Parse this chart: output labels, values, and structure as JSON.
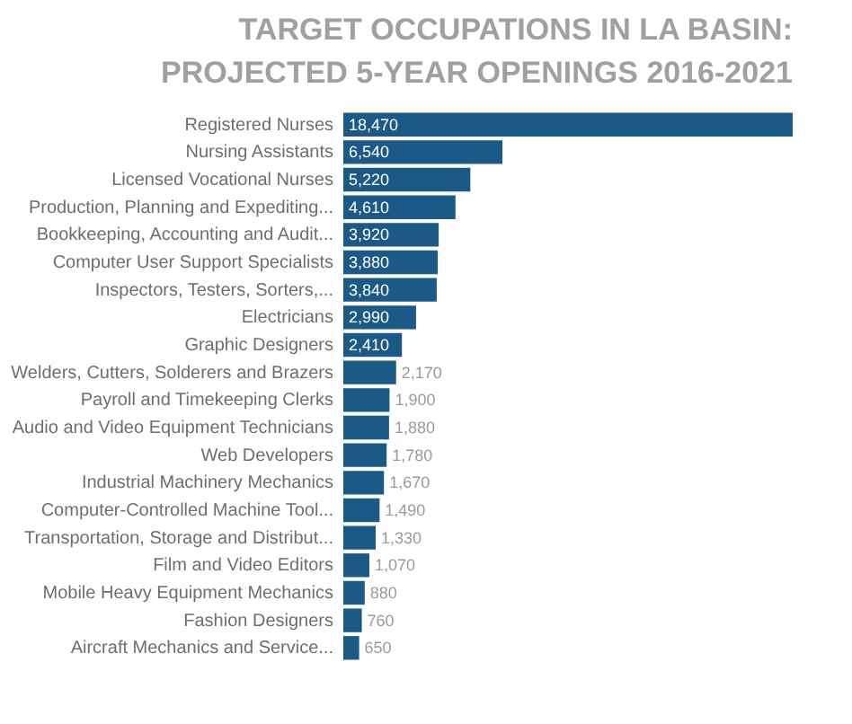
{
  "chart_data": {
    "type": "bar",
    "orientation": "horizontal",
    "title": "TARGET OCCUPATIONS IN LA BASIN: PROJECTED 5-YEAR OPENINGS 2016-2021",
    "categories": [
      "Registered Nurses",
      "Nursing Assistants",
      "Licensed Vocational Nurses",
      "Production, Planning and Expediting...",
      "Bookkeeping, Accounting and Audit...",
      "Computer User Support Specialists",
      "Inspectors, Testers, Sorters,...",
      "Electricians",
      "Graphic Designers",
      "Welders, Cutters, Solderers and Brazers",
      "Payroll and Timekeeping Clerks",
      "Audio and Video Equipment Technicians",
      "Web Developers",
      "Industrial Machinery Mechanics",
      "Computer-Controlled Machine Tool...",
      "Transportation, Storage and Distribut...",
      "Film and Video Editors",
      "Mobile Heavy Equipment Mechanics",
      "Fashion Designers",
      "Aircraft Mechanics and Service..."
    ],
    "values": [
      18470,
      6540,
      5220,
      4610,
      3920,
      3880,
      3840,
      2990,
      2410,
      2170,
      1900,
      1880,
      1780,
      1670,
      1490,
      1330,
      1070,
      880,
      760,
      650
    ],
    "value_labels": [
      "18,470",
      "6,540",
      "5,220",
      "4,610",
      "3,920",
      "3,880",
      "3,840",
      "2,990",
      "2,410",
      "2,170",
      "1,900",
      "1,880",
      "1,780",
      "1,670",
      "1,490",
      "1,330",
      "1,070",
      "880",
      "760",
      "650"
    ],
    "color": "#1b5a87"
  }
}
